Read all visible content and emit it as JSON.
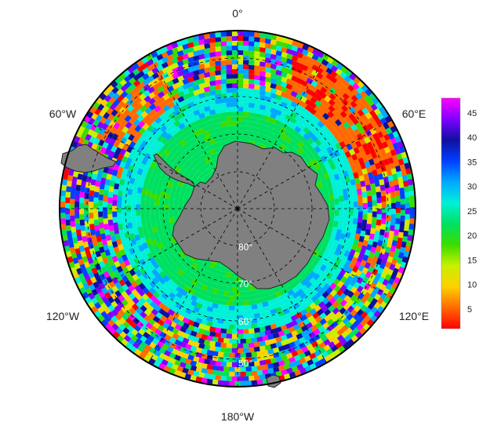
{
  "map": {
    "projection": "south-polar-stereographic",
    "longitude_labels": {
      "top": "0°",
      "upper_left": "60°W",
      "upper_right": "60°E",
      "lower_left": "120°W",
      "lower_right": "120°E",
      "bottom": "180°W"
    },
    "latitude_labels": [
      "80°",
      "70°",
      "60°",
      "50°"
    ],
    "colors": {
      "land": "#808080",
      "coastline": "#222222",
      "graticule": "#000000",
      "border": "#000000",
      "background": "#ffffff"
    }
  },
  "colorbar": {
    "min": 1,
    "max": 48,
    "ticks": [
      "45",
      "40",
      "35",
      "30",
      "25",
      "20",
      "15",
      "10",
      "5"
    ],
    "tick_values": [
      45,
      40,
      35,
      30,
      25,
      20,
      15,
      10,
      5
    ],
    "colormap": [
      "#ff0000",
      "#ff6a00",
      "#ffd000",
      "#c8f000",
      "#3cdc00",
      "#00e060",
      "#00f0d8",
      "#00a8ff",
      "#0040ff",
      "#1010a0",
      "#8000ff",
      "#ff00ff"
    ]
  }
}
